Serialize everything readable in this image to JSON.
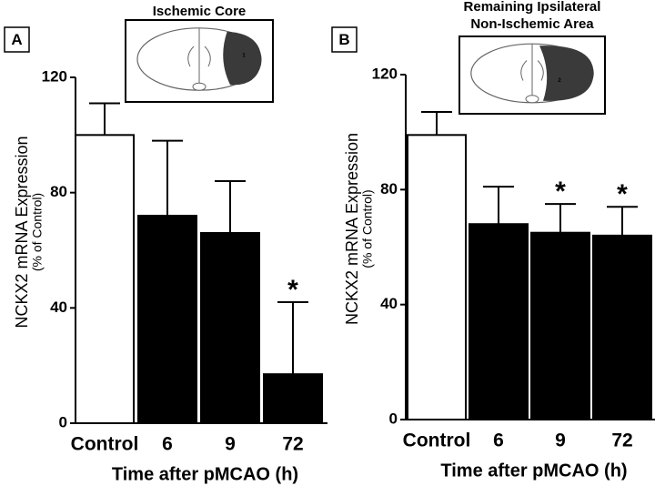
{
  "chart_data": [
    {
      "type": "bar",
      "panel": "A",
      "title": [
        "Ischemic Core"
      ],
      "inset_label": "1",
      "ylabel": "NCKX2 mRNA Expression",
      "ylabel_sub": "(% of Control)",
      "xlabel": "Time after pMCAO (h)",
      "categories": [
        "Control",
        "6",
        "9",
        "72"
      ],
      "values": [
        100,
        72,
        66,
        17
      ],
      "errors": [
        11,
        26,
        18,
        25
      ],
      "colors": [
        "#ffffff",
        "#000000",
        "#000000",
        "#000000"
      ],
      "annotations": [
        null,
        null,
        null,
        "*"
      ],
      "ylim": [
        0,
        120
      ],
      "yticks": [
        0,
        40,
        80,
        120
      ]
    },
    {
      "type": "bar",
      "panel": "B",
      "title": [
        "Remaining Ipsilateral",
        "Non-Ischemic Area"
      ],
      "inset_label": "2",
      "ylabel": "NCKX2 mRNA Expression",
      "ylabel_sub": "(% of Control)",
      "xlabel": "Time after pMCAO (h)",
      "categories": [
        "Control",
        "6",
        "9",
        "72"
      ],
      "values": [
        99,
        68,
        65,
        64
      ],
      "errors": [
        8,
        13,
        10,
        10
      ],
      "colors": [
        "#ffffff",
        "#000000",
        "#000000",
        "#000000"
      ],
      "annotations": [
        null,
        null,
        "*",
        "*"
      ],
      "ylim": [
        0,
        120
      ],
      "yticks": [
        0,
        40,
        80,
        120
      ]
    }
  ]
}
